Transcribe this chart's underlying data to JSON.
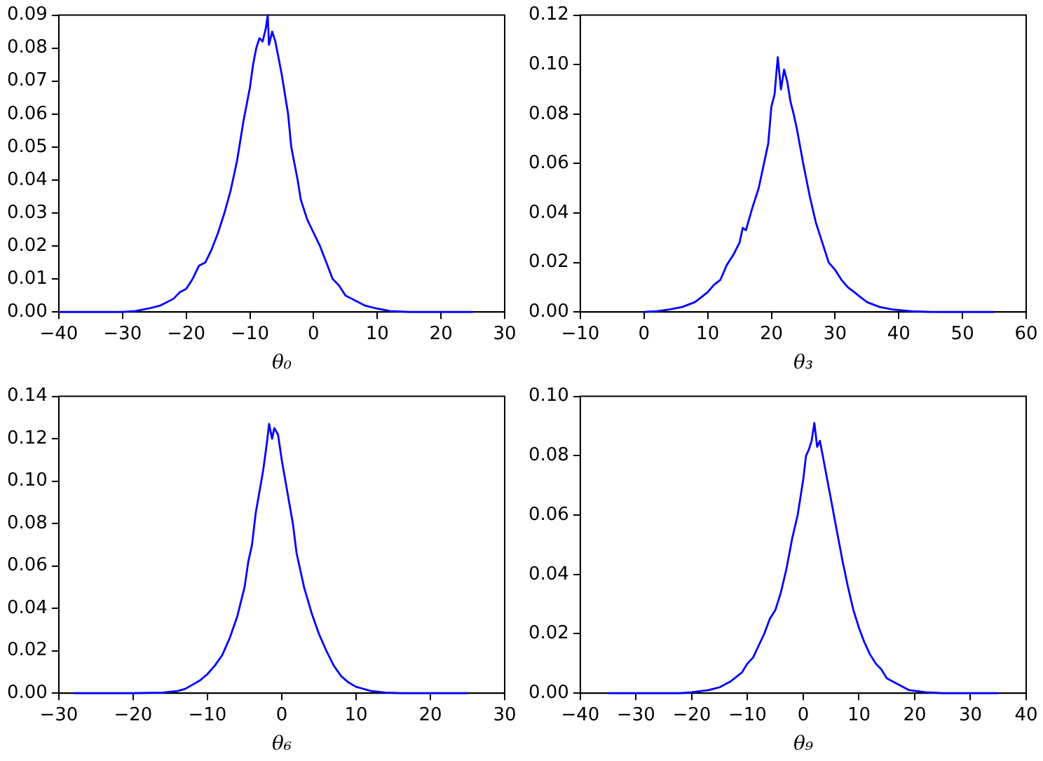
{
  "chart_data": [
    {
      "type": "line",
      "xlabel": "θ₀",
      "marker": "none",
      "grid": false,
      "xlim": [
        -40,
        30
      ],
      "ylim": [
        0,
        0.09
      ],
      "xticks": [
        {
          "value": -40,
          "label": "−40"
        },
        {
          "value": -30,
          "label": "−30"
        },
        {
          "value": -20,
          "label": "−20"
        },
        {
          "value": -10,
          "label": "−10"
        },
        0,
        10,
        20,
        30
      ],
      "yticks": [
        {
          "value": 0,
          "label": "0.00"
        },
        {
          "value": 0.01,
          "label": "0.01"
        },
        {
          "value": 0.02,
          "label": "0.02"
        },
        {
          "value": 0.03,
          "label": "0.03"
        },
        {
          "value": 0.04,
          "label": "0.04"
        },
        {
          "value": 0.05,
          "label": "0.05"
        },
        {
          "value": 0.06,
          "label": "0.06"
        },
        {
          "value": 0.07,
          "label": "0.07"
        },
        {
          "value": 0.08,
          "label": "0.08"
        },
        {
          "value": 0.09,
          "label": "0.09"
        }
      ],
      "x": [
        -40,
        -30,
        -28,
        -26,
        -24,
        -22,
        -21,
        -20,
        -19,
        -18,
        -17,
        -16,
        -15,
        -14,
        -13,
        -12,
        -11,
        -10,
        -9.5,
        -9,
        -8.5,
        -8,
        -7.5,
        -7.2,
        -7,
        -6.5,
        -6,
        -5.5,
        -5,
        -4.5,
        -4,
        -3.5,
        -3,
        -2.5,
        -2,
        -1,
        0,
        1,
        2,
        3,
        4,
        5,
        6,
        8,
        10,
        12,
        15,
        25
      ],
      "series": [
        {
          "color": "#0000ff",
          "values": [
            0,
            0,
            0.0003,
            0.001,
            0.002,
            0.004,
            0.006,
            0.007,
            0.01,
            0.014,
            0.015,
            0.019,
            0.024,
            0.03,
            0.037,
            0.046,
            0.058,
            0.068,
            0.075,
            0.08,
            0.083,
            0.082,
            0.086,
            0.09,
            0.081,
            0.085,
            0.082,
            0.077,
            0.072,
            0.066,
            0.06,
            0.05,
            0.045,
            0.04,
            0.034,
            0.028,
            0.024,
            0.02,
            0.015,
            0.01,
            0.008,
            0.005,
            0.004,
            0.002,
            0.001,
            0.0003,
            0,
            0
          ]
        }
      ]
    },
    {
      "type": "line",
      "xlabel": "θ₃",
      "marker": "none",
      "grid": false,
      "xlim": [
        -10,
        60
      ],
      "ylim": [
        0,
        0.12
      ],
      "xticks": [
        {
          "value": -10,
          "label": "−10"
        },
        0,
        10,
        20,
        30,
        40,
        50,
        60
      ],
      "yticks": [
        {
          "value": 0,
          "label": "0.00"
        },
        {
          "value": 0.02,
          "label": "0.02"
        },
        {
          "value": 0.04,
          "label": "0.04"
        },
        {
          "value": 0.06,
          "label": "0.06"
        },
        {
          "value": 0.08,
          "label": "0.08"
        },
        {
          "value": 0.1,
          "label": "0.10"
        },
        {
          "value": 0.12,
          "label": "0.12"
        }
      ],
      "x": [
        0,
        2,
        4,
        6,
        8,
        9,
        10,
        11,
        12,
        13,
        14,
        15,
        15.5,
        16,
        17,
        18,
        19,
        19.5,
        20,
        20.5,
        21,
        21.5,
        22,
        22.5,
        23,
        23.5,
        24,
        25,
        26,
        27,
        28,
        29,
        30,
        31,
        32,
        33,
        34,
        35,
        37,
        39,
        42,
        45,
        55
      ],
      "series": [
        {
          "color": "#0000ff",
          "values": [
            0,
            0.0003,
            0.001,
            0.002,
            0.004,
            0.006,
            0.008,
            0.011,
            0.013,
            0.019,
            0.023,
            0.028,
            0.034,
            0.033,
            0.042,
            0.05,
            0.062,
            0.068,
            0.083,
            0.088,
            0.103,
            0.09,
            0.098,
            0.093,
            0.085,
            0.08,
            0.074,
            0.06,
            0.047,
            0.036,
            0.028,
            0.02,
            0.017,
            0.013,
            0.01,
            0.008,
            0.006,
            0.004,
            0.002,
            0.001,
            0.0003,
            0,
            0
          ]
        }
      ]
    },
    {
      "type": "line",
      "xlabel": "θ₆",
      "marker": "none",
      "grid": false,
      "xlim": [
        -30,
        30
      ],
      "ylim": [
        0,
        0.14
      ],
      "xticks": [
        {
          "value": -30,
          "label": "−30"
        },
        {
          "value": -20,
          "label": "−20"
        },
        {
          "value": -10,
          "label": "−10"
        },
        0,
        10,
        20,
        30
      ],
      "yticks": [
        {
          "value": 0,
          "label": "0.00"
        },
        {
          "value": 0.02,
          "label": "0.02"
        },
        {
          "value": 0.04,
          "label": "0.04"
        },
        {
          "value": 0.06,
          "label": "0.06"
        },
        {
          "value": 0.08,
          "label": "0.08"
        },
        {
          "value": 0.1,
          "label": "0.10"
        },
        {
          "value": 0.12,
          "label": "0.12"
        },
        {
          "value": 0.14,
          "label": "0.14"
        }
      ],
      "x": [
        -28,
        -20,
        -16,
        -14,
        -13,
        -12,
        -11,
        -10,
        -9,
        -8,
        -7.5,
        -7,
        -6,
        -5,
        -4.5,
        -4,
        -3.5,
        -3,
        -2.5,
        -2,
        -1.7,
        -1.3,
        -1,
        -0.5,
        0,
        0.5,
        1,
        1.5,
        2,
        3,
        4,
        5,
        6,
        7,
        8,
        9,
        10,
        12,
        14,
        16,
        25
      ],
      "series": [
        {
          "color": "#0000ff",
          "values": [
            0,
            0,
            0.0003,
            0.001,
            0.002,
            0.004,
            0.006,
            0.009,
            0.013,
            0.018,
            0.022,
            0.026,
            0.036,
            0.05,
            0.062,
            0.07,
            0.085,
            0.095,
            0.105,
            0.118,
            0.127,
            0.12,
            0.125,
            0.122,
            0.11,
            0.1,
            0.09,
            0.08,
            0.066,
            0.05,
            0.038,
            0.028,
            0.02,
            0.013,
            0.008,
            0.005,
            0.003,
            0.001,
            0.0003,
            0,
            0
          ]
        }
      ]
    },
    {
      "type": "line",
      "xlabel": "θ₉",
      "marker": "none",
      "grid": false,
      "xlim": [
        -40,
        40
      ],
      "ylim": [
        0,
        0.1
      ],
      "xticks": [
        {
          "value": -40,
          "label": "−40"
        },
        {
          "value": -30,
          "label": "−30"
        },
        {
          "value": -20,
          "label": "−20"
        },
        {
          "value": -10,
          "label": "−10"
        },
        0,
        10,
        20,
        30,
        40
      ],
      "yticks": [
        {
          "value": 0,
          "label": "0.00"
        },
        {
          "value": 0.02,
          "label": "0.02"
        },
        {
          "value": 0.04,
          "label": "0.04"
        },
        {
          "value": 0.06,
          "label": "0.06"
        },
        {
          "value": 0.08,
          "label": "0.08"
        },
        {
          "value": 0.1,
          "label": "0.10"
        }
      ],
      "x": [
        -35,
        -22,
        -20,
        -17,
        -15,
        -13,
        -11,
        -10,
        -9,
        -8,
        -7,
        -6,
        -5,
        -4,
        -3,
        -2,
        -1,
        0,
        0.5,
        1,
        1.5,
        2,
        2.5,
        3,
        3.5,
        4,
        5,
        6,
        7,
        8,
        9,
        10,
        11,
        12,
        13,
        14,
        15,
        17,
        19,
        22,
        25,
        35
      ],
      "series": [
        {
          "color": "#0000ff",
          "values": [
            0,
            0,
            0.0003,
            0.001,
            0.002,
            0.004,
            0.007,
            0.01,
            0.012,
            0.016,
            0.02,
            0.025,
            0.028,
            0.034,
            0.042,
            0.052,
            0.06,
            0.072,
            0.08,
            0.082,
            0.085,
            0.091,
            0.083,
            0.085,
            0.08,
            0.075,
            0.065,
            0.055,
            0.045,
            0.036,
            0.028,
            0.022,
            0.017,
            0.013,
            0.01,
            0.008,
            0.005,
            0.003,
            0.001,
            0.0003,
            0,
            0
          ]
        }
      ]
    }
  ]
}
